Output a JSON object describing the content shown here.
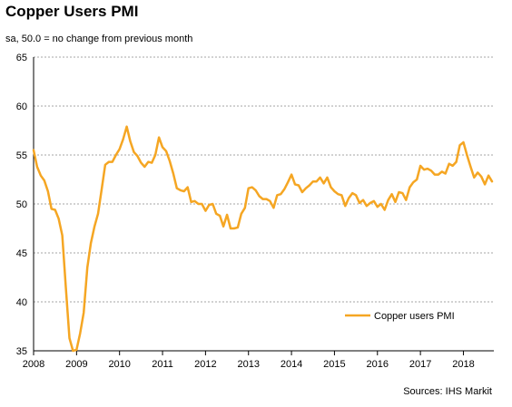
{
  "chart_data": {
    "type": "line",
    "title": "Copper Users PMI",
    "subtitle": "sa, 50.0 = no change from previous month",
    "source": "Sources: IHS Markit",
    "ylim": [
      35,
      65
    ],
    "y_ticks": [
      "35",
      "40",
      "45",
      "50",
      "55",
      "60",
      "65"
    ],
    "xlim": [
      "2008-01",
      "2018-09"
    ],
    "x_ticks": [
      "2008",
      "2009",
      "2010",
      "2011",
      "2012",
      "2013",
      "2014",
      "2015",
      "2016",
      "2017",
      "2018"
    ],
    "grid": "horizontal-dashed",
    "legend_position": "bottom-right",
    "series": [
      {
        "name": "Copper users PMI",
        "color": "#F5A623",
        "points": [
          [
            "2008-01",
            55.5
          ],
          [
            "2008-02",
            53.8
          ],
          [
            "2008-03",
            52.9
          ],
          [
            "2008-04",
            52.4
          ],
          [
            "2008-05",
            51.3
          ],
          [
            "2008-06",
            49.5
          ],
          [
            "2008-07",
            49.4
          ],
          [
            "2008-08",
            48.5
          ],
          [
            "2008-09",
            46.8
          ],
          [
            "2008-10",
            41.5
          ],
          [
            "2008-11",
            36.3
          ],
          [
            "2008-12",
            35.0
          ],
          [
            "2009-01",
            35.1
          ],
          [
            "2009-02",
            36.8
          ],
          [
            "2009-03",
            38.9
          ],
          [
            "2009-04",
            43.5
          ],
          [
            "2009-05",
            46.0
          ],
          [
            "2009-06",
            47.7
          ],
          [
            "2009-07",
            49.0
          ],
          [
            "2009-08",
            51.5
          ],
          [
            "2009-09",
            54.0
          ],
          [
            "2009-10",
            54.3
          ],
          [
            "2009-11",
            54.3
          ],
          [
            "2009-12",
            55.0
          ],
          [
            "2010-01",
            55.6
          ],
          [
            "2010-02",
            56.6
          ],
          [
            "2010-03",
            57.9
          ],
          [
            "2010-04",
            56.4
          ],
          [
            "2010-05",
            55.3
          ],
          [
            "2010-06",
            54.9
          ],
          [
            "2010-07",
            54.2
          ],
          [
            "2010-08",
            53.8
          ],
          [
            "2010-09",
            54.3
          ],
          [
            "2010-10",
            54.2
          ],
          [
            "2010-11",
            55.0
          ],
          [
            "2010-12",
            56.8
          ],
          [
            "2011-01",
            55.8
          ],
          [
            "2011-02",
            55.4
          ],
          [
            "2011-03",
            54.4
          ],
          [
            "2011-04",
            53.1
          ],
          [
            "2011-05",
            51.6
          ],
          [
            "2011-06",
            51.4
          ],
          [
            "2011-07",
            51.3
          ],
          [
            "2011-08",
            51.7
          ],
          [
            "2011-09",
            50.2
          ],
          [
            "2011-10",
            50.3
          ],
          [
            "2011-11",
            50.0
          ],
          [
            "2011-12",
            50.0
          ],
          [
            "2012-01",
            49.3
          ],
          [
            "2012-02",
            49.9
          ],
          [
            "2012-03",
            50.0
          ],
          [
            "2012-04",
            49.0
          ],
          [
            "2012-05",
            48.8
          ],
          [
            "2012-06",
            47.7
          ],
          [
            "2012-07",
            48.9
          ],
          [
            "2012-08",
            47.5
          ],
          [
            "2012-09",
            47.5
          ],
          [
            "2012-10",
            47.6
          ],
          [
            "2012-11",
            49.0
          ],
          [
            "2012-12",
            49.6
          ],
          [
            "2013-01",
            51.6
          ],
          [
            "2013-02",
            51.7
          ],
          [
            "2013-03",
            51.4
          ],
          [
            "2013-04",
            50.8
          ],
          [
            "2013-05",
            50.5
          ],
          [
            "2013-06",
            50.5
          ],
          [
            "2013-07",
            50.3
          ],
          [
            "2013-08",
            49.6
          ],
          [
            "2013-09",
            50.9
          ],
          [
            "2013-10",
            51.0
          ],
          [
            "2013-11",
            51.5
          ],
          [
            "2013-12",
            52.2
          ],
          [
            "2014-01",
            53.0
          ],
          [
            "2014-02",
            52.0
          ],
          [
            "2014-03",
            51.9
          ],
          [
            "2014-04",
            51.2
          ],
          [
            "2014-05",
            51.6
          ],
          [
            "2014-06",
            51.9
          ],
          [
            "2014-07",
            52.3
          ],
          [
            "2014-08",
            52.3
          ],
          [
            "2014-09",
            52.7
          ],
          [
            "2014-10",
            52.1
          ],
          [
            "2014-11",
            52.7
          ],
          [
            "2014-12",
            51.7
          ],
          [
            "2015-01",
            51.3
          ],
          [
            "2015-02",
            51.0
          ],
          [
            "2015-03",
            50.9
          ],
          [
            "2015-04",
            49.8
          ],
          [
            "2015-05",
            50.6
          ],
          [
            "2015-06",
            51.1
          ],
          [
            "2015-07",
            50.9
          ],
          [
            "2015-08",
            50.1
          ],
          [
            "2015-09",
            50.4
          ],
          [
            "2015-10",
            49.8
          ],
          [
            "2015-11",
            50.1
          ],
          [
            "2015-12",
            50.3
          ],
          [
            "2016-01",
            49.7
          ],
          [
            "2016-02",
            50.0
          ],
          [
            "2016-03",
            49.4
          ],
          [
            "2016-04",
            50.4
          ],
          [
            "2016-05",
            51.0
          ],
          [
            "2016-06",
            50.2
          ],
          [
            "2016-07",
            51.2
          ],
          [
            "2016-08",
            51.1
          ],
          [
            "2016-09",
            50.4
          ],
          [
            "2016-10",
            51.7
          ],
          [
            "2016-11",
            52.2
          ],
          [
            "2016-12",
            52.5
          ],
          [
            "2017-01",
            53.9
          ],
          [
            "2017-02",
            53.5
          ],
          [
            "2017-03",
            53.6
          ],
          [
            "2017-04",
            53.4
          ],
          [
            "2017-05",
            53.0
          ],
          [
            "2017-06",
            53.0
          ],
          [
            "2017-07",
            53.3
          ],
          [
            "2017-08",
            53.1
          ],
          [
            "2017-09",
            54.1
          ],
          [
            "2017-10",
            53.9
          ],
          [
            "2017-11",
            54.3
          ],
          [
            "2017-12",
            56.0
          ],
          [
            "2018-01",
            56.3
          ],
          [
            "2018-02",
            55.0
          ],
          [
            "2018-03",
            53.8
          ],
          [
            "2018-04",
            52.7
          ],
          [
            "2018-05",
            53.2
          ],
          [
            "2018-06",
            52.8
          ],
          [
            "2018-07",
            52.0
          ],
          [
            "2018-08",
            52.9
          ],
          [
            "2018-09",
            52.3
          ]
        ]
      }
    ]
  }
}
